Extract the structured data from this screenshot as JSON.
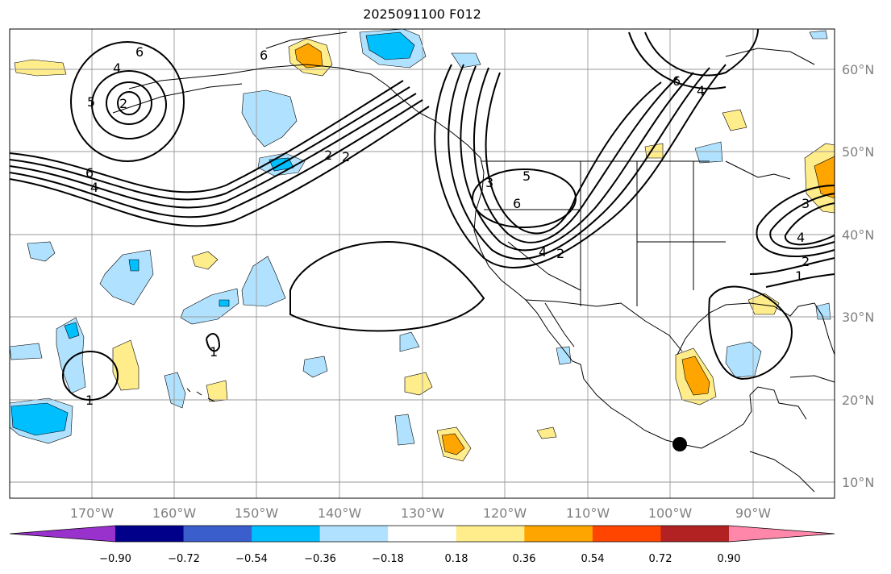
{
  "title": "2025091100 F012",
  "map": {
    "lon_ticks": [
      "170°W",
      "160°W",
      "150°W",
      "140°W",
      "130°W",
      "120°W",
      "110°W",
      "100°W",
      "90°W"
    ],
    "lat_ticks": [
      "60°N",
      "50°N",
      "40°N",
      "30°N",
      "20°N",
      "10°N"
    ],
    "grid": true,
    "coastline_color": "#000000",
    "gridline_color": "#999999"
  },
  "contour_labels": [
    "6",
    "4",
    "2",
    "6",
    "4",
    "2",
    "3",
    "5",
    "6",
    "4",
    "2",
    "3",
    "4",
    "2",
    "1",
    "1",
    "1",
    "6",
    "4",
    "6",
    "2",
    "5"
  ],
  "colorbar": {
    "ticks": [
      "−0.90",
      "−0.72",
      "−0.54",
      "−0.36",
      "−0.18",
      "0.18",
      "0.36",
      "0.54",
      "0.72",
      "0.90"
    ],
    "colors": [
      "#9932cc",
      "#00008b",
      "#3a5fcd",
      "#00bfff",
      "#b0e2ff",
      "#ffffff",
      "#ffec8b",
      "#ffa500",
      "#ff4500",
      "#b22222",
      "#ff88aa"
    ]
  },
  "marker": {
    "label": "",
    "color": "#000000"
  }
}
